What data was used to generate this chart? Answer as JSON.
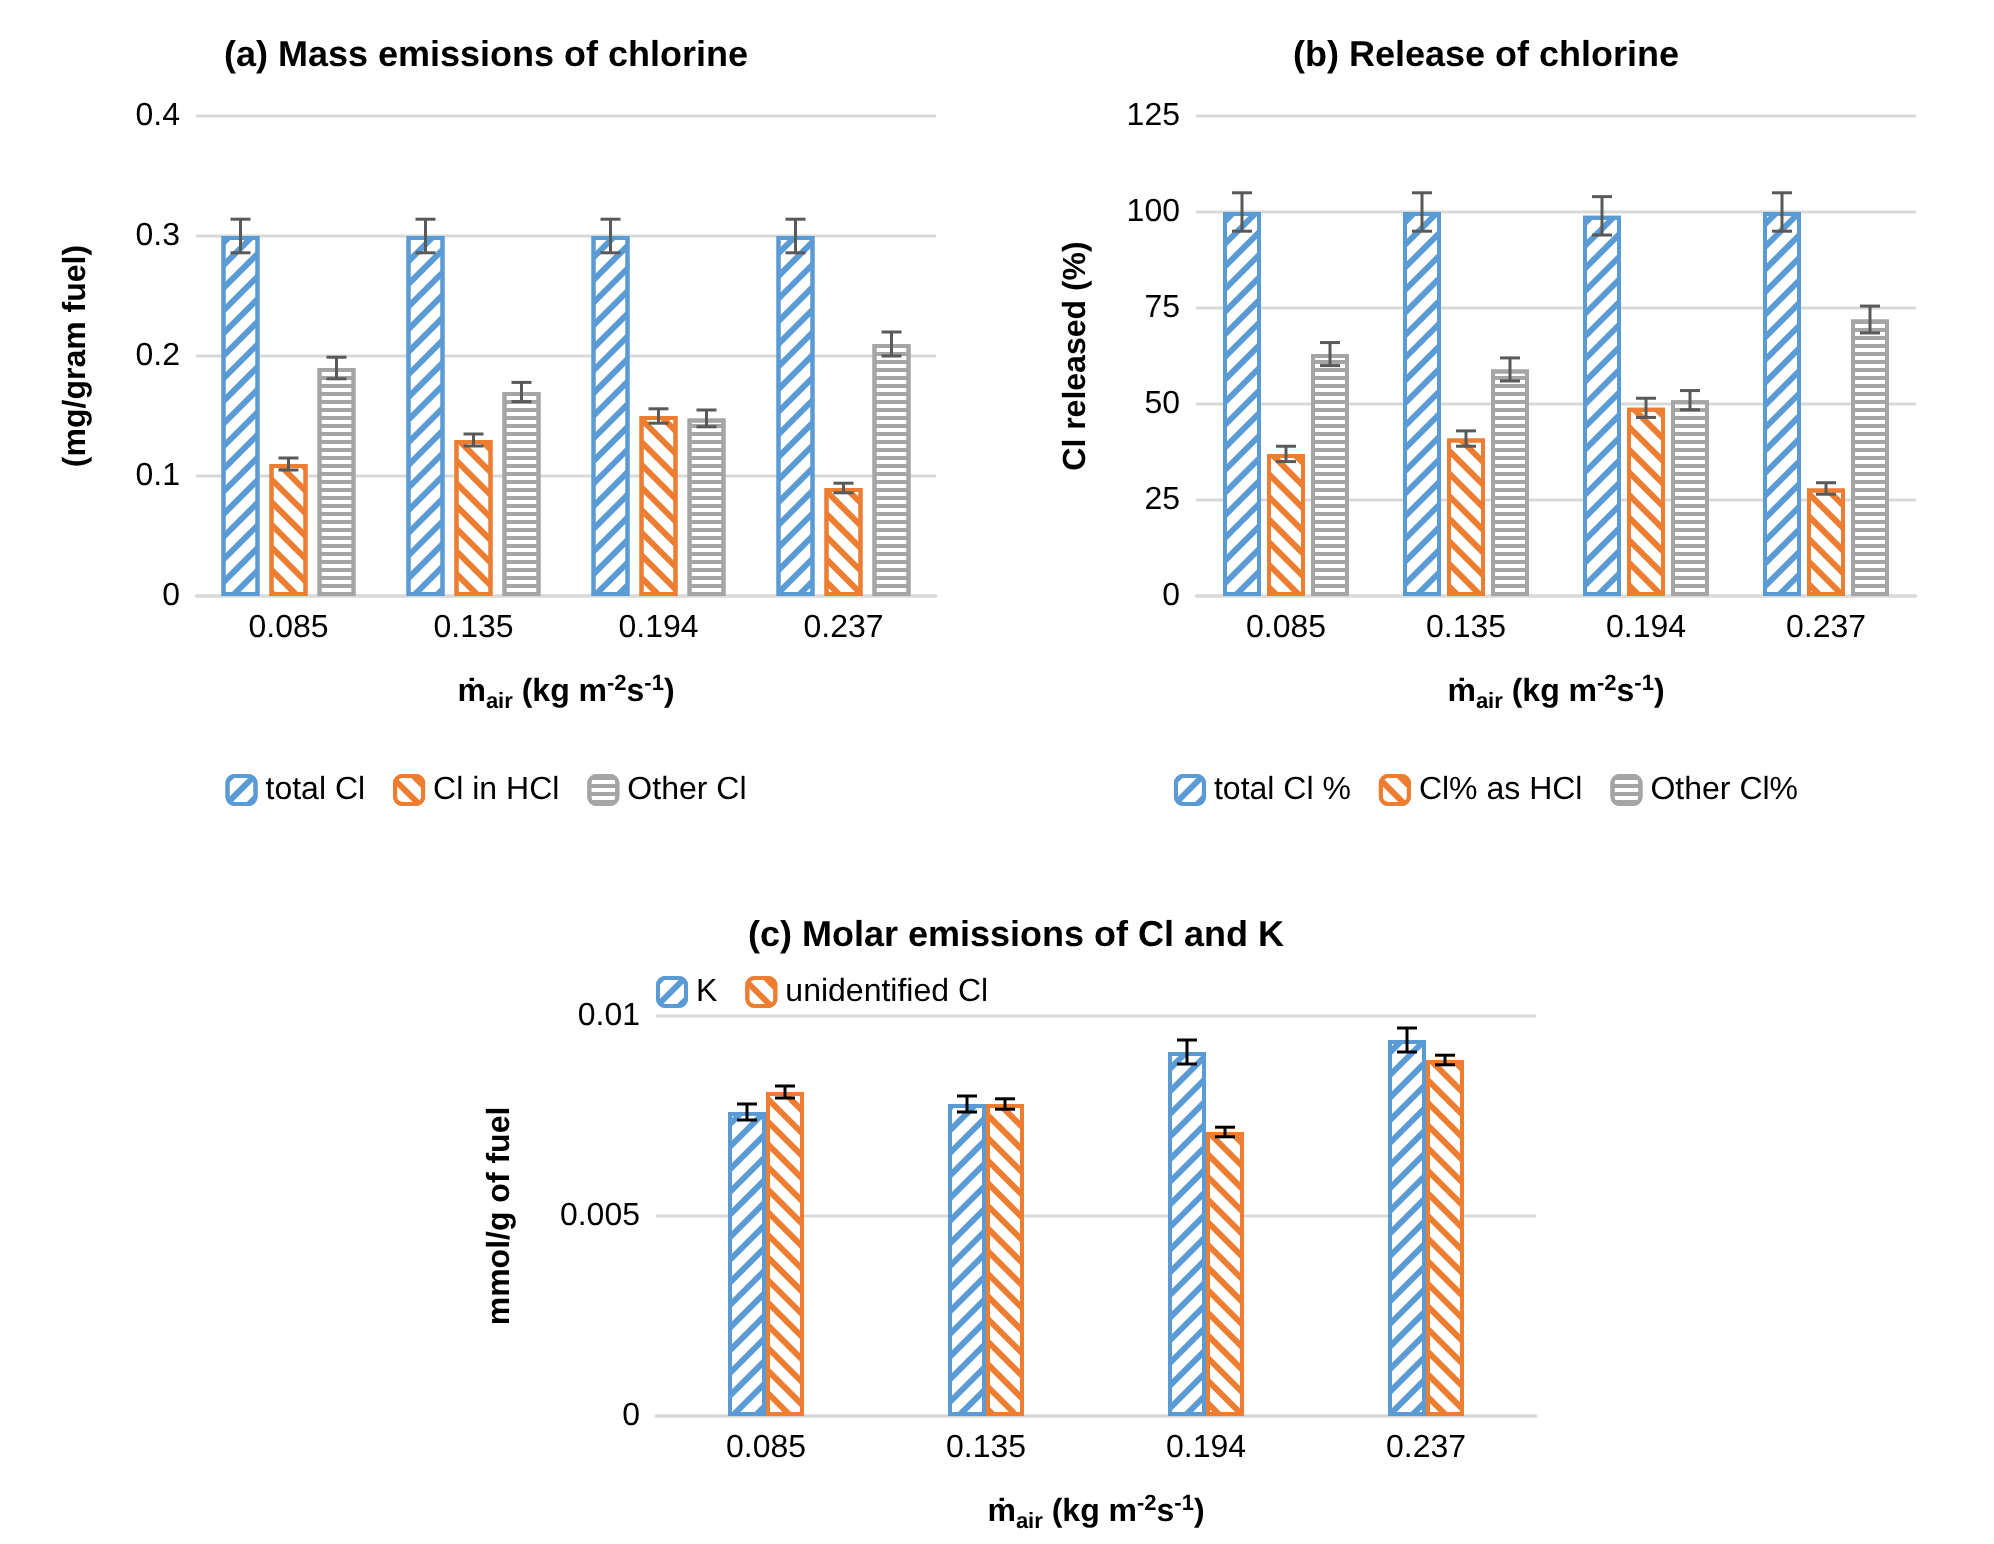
{
  "chart_data": [
    {
      "type": "bar",
      "title": "(a) Mass emissions of chlorine",
      "xlabel": "ṁ$_{air}$ (kg m$^{-2}$s$^{-1}$)",
      "ylabel": "(mg/gram fuel)",
      "categories": [
        "0.085",
        "0.135",
        "0.194",
        "0.237"
      ],
      "series": [
        {
          "name": "total Cl",
          "color": "#5b9bd5",
          "values": [
            0.3,
            0.3,
            0.3,
            0.3
          ],
          "errors": [
            0.014,
            0.014,
            0.014,
            0.014
          ]
        },
        {
          "name": "Cl in HCl",
          "color": "#ed7d31",
          "values": [
            0.11,
            0.13,
            0.15,
            0.09
          ],
          "errors": [
            0.005,
            0.005,
            0.006,
            0.004
          ]
        },
        {
          "name": "Other Cl",
          "color": "#a5a5a5",
          "values": [
            0.19,
            0.17,
            0.148,
            0.21
          ],
          "errors": [
            0.009,
            0.008,
            0.007,
            0.01
          ]
        }
      ],
      "ylim": [
        0,
        0.4
      ],
      "yticks": [
        0,
        0.1,
        0.2,
        0.3,
        0.4
      ],
      "grid": "y",
      "legend": "bottom"
    },
    {
      "type": "bar",
      "title": "(b) Release of chlorine",
      "xlabel": "ṁ$_{air}$ (kg m$^{-2}$s$^{-1}$)",
      "ylabel": "Cl released (%)",
      "categories": [
        "0.085",
        "0.135",
        "0.194",
        "0.237"
      ],
      "series": [
        {
          "name": "total Cl %",
          "color": "#5b9bd5",
          "values": [
            100,
            100,
            99,
            100
          ],
          "errors": [
            5,
            5,
            5,
            5
          ]
        },
        {
          "name": "Cl% as HCl",
          "color": "#ed7d31",
          "values": [
            37,
            41,
            49,
            28
          ],
          "errors": [
            2,
            2,
            2.5,
            1.5
          ]
        },
        {
          "name": "Other Cl%",
          "color": "#a5a5a5",
          "values": [
            63,
            59,
            51,
            72
          ],
          "errors": [
            3,
            3,
            2.5,
            3.5
          ]
        }
      ],
      "ylim": [
        0,
        125
      ],
      "yticks": [
        0,
        25,
        50,
        75,
        100,
        125
      ],
      "grid": "y",
      "legend": "bottom"
    },
    {
      "type": "bar",
      "title": "(c) Molar emissions of Cl and K",
      "xlabel": "ṁ$_{air}$ (kg m$^{-2}$s$^{-1}$)",
      "ylabel": "mmol/g of fuel",
      "categories": [
        "0.085",
        "0.135",
        "0.194",
        "0.237"
      ],
      "series": [
        {
          "name": "K",
          "color": "#5b9bd5",
          "values": [
            0.0076,
            0.0078,
            0.0091,
            0.0094
          ],
          "errors": [
            0.0002,
            0.0002,
            0.0003,
            0.0003
          ]
        },
        {
          "name": "unidentified Cl",
          "color": "#ed7d31",
          "values": [
            0.0081,
            0.0078,
            0.0071,
            0.0089
          ],
          "errors": [
            0.00015,
            0.00013,
            0.00012,
            0.00012
          ]
        }
      ],
      "ylim": [
        0,
        0.01
      ],
      "yticks": [
        0,
        0.005,
        0.01
      ],
      "grid": "y",
      "legend": "top left"
    }
  ]
}
